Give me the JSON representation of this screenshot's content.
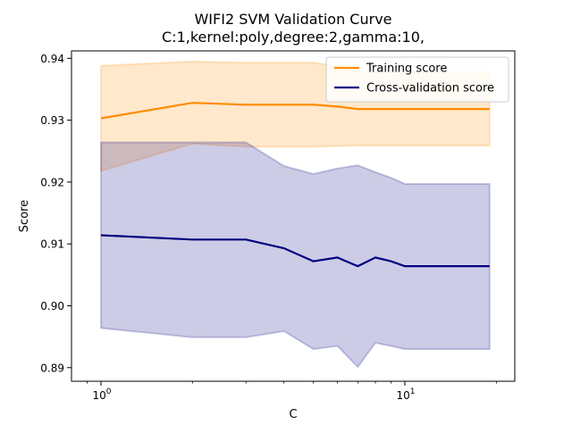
{
  "chart_data": {
    "type": "line",
    "title": "WIFI2 SVM Validation Curve",
    "subtitle": "C:1,kernel:poly,degree:2,gamma:10,",
    "xlabel": "C",
    "ylabel": "Score",
    "x_scale": "log",
    "xlim": [
      0.8,
      23
    ],
    "ylim": [
      0.8878,
      0.9412
    ],
    "x": [
      1,
      2,
      3,
      4,
      5,
      6,
      7,
      8,
      9,
      10,
      11,
      12,
      13,
      14,
      15,
      16,
      17,
      18,
      19
    ],
    "x_ticks": [
      {
        "value": 1,
        "base": "10",
        "exponent": "0"
      },
      {
        "value": 10,
        "base": "10",
        "exponent": "1"
      }
    ],
    "y_ticks": [
      {
        "value": 0.89,
        "label": "0.89"
      },
      {
        "value": 0.9,
        "label": "0.90"
      },
      {
        "value": 0.91,
        "label": "0.91"
      },
      {
        "value": 0.92,
        "label": "0.92"
      },
      {
        "value": 0.93,
        "label": "0.93"
      },
      {
        "value": 0.94,
        "label": "0.94"
      }
    ],
    "legend_position": "top-right",
    "grid": false,
    "series": [
      {
        "name": "Training score",
        "color": "#ff8c00",
        "values": [
          0.9303,
          0.9328,
          0.9325,
          0.9325,
          0.9325,
          0.9322,
          0.9318,
          0.9318,
          0.9318,
          0.9318,
          0.9318,
          0.9318,
          0.9318,
          0.9318,
          0.9318,
          0.9318,
          0.9318,
          0.9318,
          0.9318
        ],
        "band_upper": [
          0.9388,
          0.9395,
          0.9393,
          0.9393,
          0.9393,
          0.9387,
          0.9378,
          0.9378,
          0.9378,
          0.9378,
          0.9378,
          0.9378,
          0.9378,
          0.9378,
          0.9378,
          0.9378,
          0.9378,
          0.9378,
          0.9378
        ],
        "band_lower": [
          0.9218,
          0.9262,
          0.9257,
          0.9257,
          0.9257,
          0.9258,
          0.9259,
          0.9259,
          0.9259,
          0.9259,
          0.9259,
          0.9259,
          0.9259,
          0.9259,
          0.9259,
          0.9259,
          0.9259,
          0.9259,
          0.9259
        ]
      },
      {
        "name": "Cross-validation score",
        "color": "#000080",
        "values": [
          0.9114,
          0.9107,
          0.9107,
          0.9093,
          0.9072,
          0.9078,
          0.9064,
          0.9078,
          0.9072,
          0.9064,
          0.9064,
          0.9064,
          0.9064,
          0.9064,
          0.9064,
          0.9064,
          0.9064,
          0.9064,
          0.9064
        ],
        "band_upper": [
          0.9264,
          0.9264,
          0.9264,
          0.9226,
          0.9213,
          0.9222,
          0.9227,
          0.9216,
          0.9207,
          0.9197,
          0.9197,
          0.9197,
          0.9197,
          0.9197,
          0.9197,
          0.9197,
          0.9197,
          0.9197,
          0.9197
        ],
        "band_lower": [
          0.8964,
          0.8949,
          0.8949,
          0.8959,
          0.893,
          0.8935,
          0.8901,
          0.894,
          0.8935,
          0.893,
          0.893,
          0.893,
          0.893,
          0.893,
          0.893,
          0.893,
          0.893,
          0.893,
          0.893
        ]
      }
    ]
  }
}
